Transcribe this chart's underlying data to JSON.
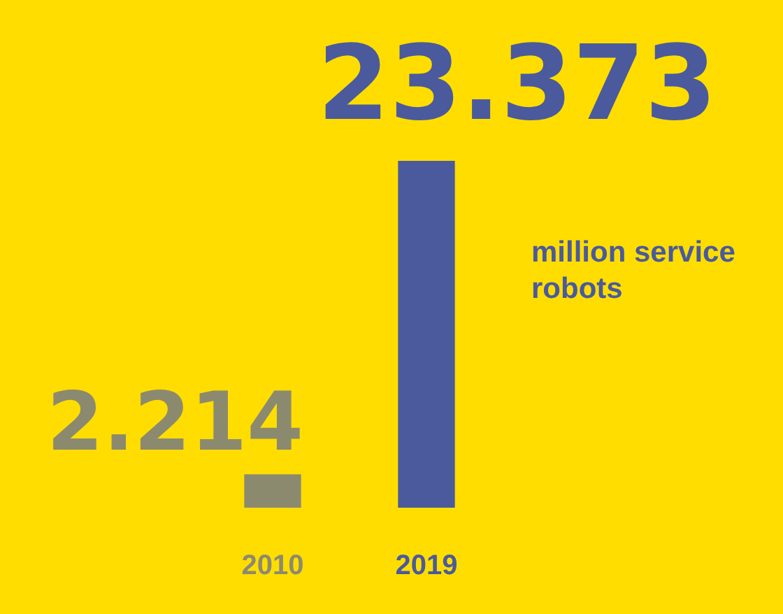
{
  "chart_data": {
    "type": "bar",
    "categories": [
      "2010",
      "2019"
    ],
    "values": [
      2.214,
      23.373
    ],
    "colors": [
      "#8c8a6e",
      "#4a5a9c"
    ],
    "data_labels": true,
    "annotations": [
      "million service robots"
    ]
  }
}
